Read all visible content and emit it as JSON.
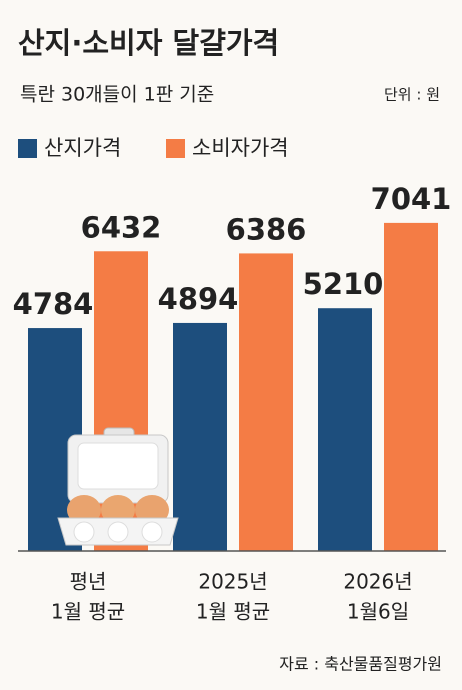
{
  "chart_data": {
    "type": "bar",
    "title": "산지·소비자 달걀가격",
    "subtitle": "특란 30개들이 1판 기준",
    "unit": "단위 : 원",
    "source": "자료 : 축산물품질평가원",
    "categories": [
      [
        "평년",
        "1월 평균"
      ],
      [
        "2025년",
        "1월 평균"
      ],
      [
        "2026년",
        "1월6일"
      ]
    ],
    "series": [
      {
        "name": "산지가격",
        "color": "#1d4e7d",
        "values": [
          4784,
          4894,
          5210
        ]
      },
      {
        "name": "소비자가격",
        "color": "#f47c45",
        "values": [
          6432,
          6386,
          7041
        ]
      }
    ]
  }
}
